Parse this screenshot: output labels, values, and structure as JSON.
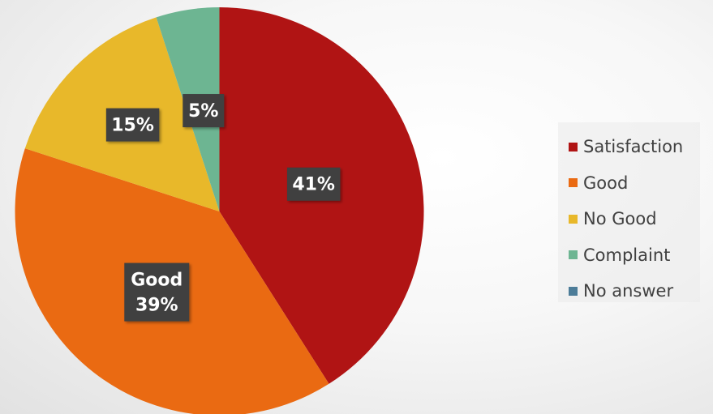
{
  "chart_data": {
    "type": "pie",
    "title": "",
    "categories": [
      "Satisfaction",
      "Good",
      "No Good",
      "Complaint",
      "No answer"
    ],
    "values": [
      41,
      39,
      15,
      5,
      0
    ],
    "colors": [
      "#b01414",
      "#ea6a12",
      "#e8b82a",
      "#6db592",
      "#4c7c98"
    ],
    "data_labels": [
      {
        "category": "Satisfaction",
        "lines": [
          "41%"
        ]
      },
      {
        "category": "Good",
        "lines": [
          "Good",
          "39%"
        ]
      },
      {
        "category": "No Good",
        "lines": [
          "15%"
        ]
      },
      {
        "category": "Complaint",
        "lines": [
          "5%"
        ]
      }
    ],
    "legend": {
      "position": "right",
      "items": [
        "Satisfaction",
        "Good",
        "No Good",
        "Complaint",
        "No answer"
      ]
    },
    "start_angle": "12 o'clock",
    "direction": "clockwise"
  }
}
